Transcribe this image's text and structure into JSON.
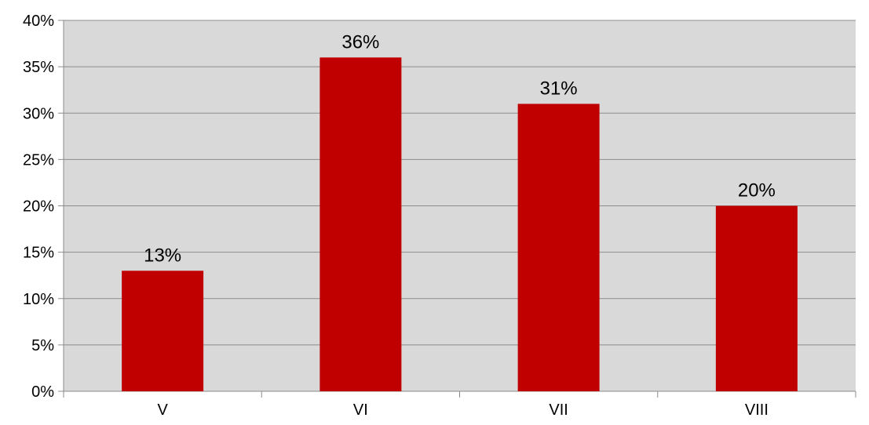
{
  "chart_data": {
    "type": "bar",
    "categories": [
      "V",
      "VI",
      "VII",
      "VIII"
    ],
    "values": [
      13,
      36,
      31,
      20
    ],
    "data_labels": [
      "13%",
      "36%",
      "31%",
      "20%"
    ],
    "y_ticks": [
      0,
      5,
      10,
      15,
      20,
      25,
      30,
      35,
      40
    ],
    "y_tick_labels": [
      "0%",
      "5%",
      "10%",
      "15%",
      "20%",
      "25%",
      "30%",
      "35%",
      "40%"
    ],
    "ylim": [
      0,
      40
    ],
    "grid": true,
    "legend": "none",
    "colors": {
      "bar": "#c00000",
      "plot_background": "#d9d9d9",
      "grid": "#8c8c8c",
      "axis": "#8c8c8c"
    }
  }
}
